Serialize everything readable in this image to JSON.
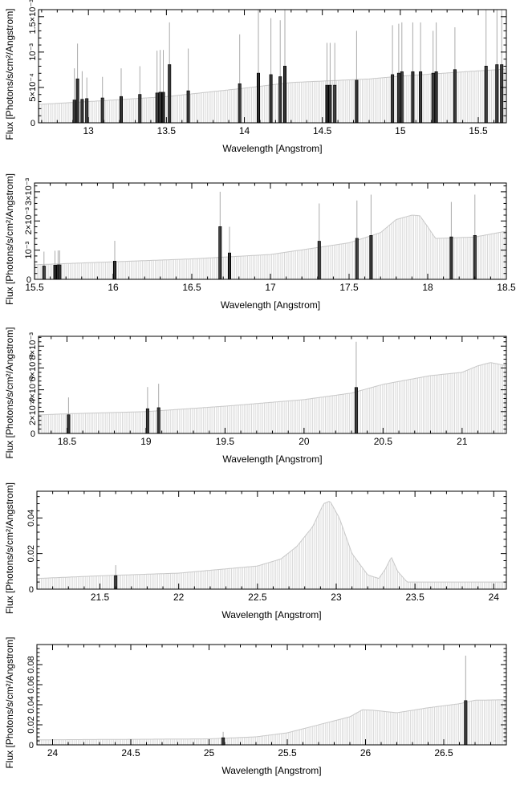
{
  "chart_data": [
    {
      "type": "bar",
      "xlabel": "Wavelength [Angstrom]",
      "ylabel": "Flux [Photons/s/cm²/Angstrom]",
      "xlim": [
        12.68,
        15.68
      ],
      "ylim": [
        0,
        0.0016
      ],
      "xticks": [
        13,
        13.5,
        14,
        14.5,
        15,
        15.5
      ],
      "xtick_labels": [
        "13",
        "13.5",
        "14",
        "14.5",
        "15",
        "15.5"
      ],
      "yticks": [
        0.0005,
        0.001,
        0.0015
      ],
      "ytick_labels": [
        "5×10⁻⁴",
        "10⁻³",
        "1.5×10⁻³"
      ],
      "continuum": [
        [
          12.68,
          0.00026
        ],
        [
          13.0,
          0.0003
        ],
        [
          13.5,
          0.00037
        ],
        [
          14.0,
          0.00049
        ],
        [
          14.3,
          0.00057
        ],
        [
          14.6,
          0.0006
        ],
        [
          14.8,
          0.00062
        ],
        [
          15.0,
          0.00066
        ],
        [
          15.4,
          0.00072
        ],
        [
          15.68,
          0.00076
        ]
      ],
      "lines": [
        {
          "x": 12.91,
          "y": 0.00032,
          "err": 0.00045
        },
        {
          "x": 12.93,
          "y": 0.00062,
          "err": 0.0005
        },
        {
          "x": 12.96,
          "y": 0.00033,
          "err": 0.0004
        },
        {
          "x": 12.99,
          "y": 0.00034,
          "err": 0.0003
        },
        {
          "x": 13.09,
          "y": 0.00035,
          "err": 0.0003
        },
        {
          "x": 13.21,
          "y": 0.00037,
          "err": 0.0004
        },
        {
          "x": 13.33,
          "y": 0.0004,
          "err": 0.0004
        },
        {
          "x": 13.44,
          "y": 0.00042,
          "err": 0.0006
        },
        {
          "x": 13.46,
          "y": 0.00043,
          "err": 0.0006
        },
        {
          "x": 13.48,
          "y": 0.00043,
          "err": 0.0006
        },
        {
          "x": 13.52,
          "y": 0.00082,
          "err": 0.0006
        },
        {
          "x": 13.64,
          "y": 0.00045,
          "err": 0.0006
        },
        {
          "x": 13.97,
          "y": 0.00055,
          "err": 0.0007
        },
        {
          "x": 14.09,
          "y": 0.0007,
          "err": 0.0009
        },
        {
          "x": 14.17,
          "y": 0.00068,
          "err": 0.0008
        },
        {
          "x": 14.23,
          "y": 0.00065,
          "err": 0.0008
        },
        {
          "x": 14.26,
          "y": 0.0008,
          "err": 0.0015
        },
        {
          "x": 14.53,
          "y": 0.00053,
          "err": 0.0006
        },
        {
          "x": 14.55,
          "y": 0.00053,
          "err": 0.0006
        },
        {
          "x": 14.58,
          "y": 0.00053,
          "err": 0.0006
        },
        {
          "x": 14.72,
          "y": 0.0006,
          "err": 0.0007
        },
        {
          "x": 14.95,
          "y": 0.00068,
          "err": 0.0007
        },
        {
          "x": 14.99,
          "y": 0.0007,
          "err": 0.0007
        },
        {
          "x": 15.01,
          "y": 0.00072,
          "err": 0.0007
        },
        {
          "x": 15.08,
          "y": 0.00072,
          "err": 0.0007
        },
        {
          "x": 15.13,
          "y": 0.00072,
          "err": 0.0007
        },
        {
          "x": 15.21,
          "y": 0.0007,
          "err": 0.0006
        },
        {
          "x": 15.23,
          "y": 0.00072,
          "err": 0.0007
        },
        {
          "x": 15.35,
          "y": 0.00075,
          "err": 0.0006
        },
        {
          "x": 15.55,
          "y": 0.0008,
          "err": 0.0008
        },
        {
          "x": 15.62,
          "y": 0.00082,
          "err": 0.0009
        },
        {
          "x": 15.65,
          "y": 0.00082,
          "err": 0.0009
        }
      ]
    },
    {
      "type": "bar",
      "xlabel": "Wavelength [Angstrom]",
      "ylabel": "Flux [Photons/s/cm²/Angstrom]",
      "xlim": [
        15.5,
        18.5
      ],
      "ylim": [
        0,
        0.0033
      ],
      "xticks": [
        15.5,
        16,
        16.5,
        17,
        17.5,
        18,
        18.5
      ],
      "xtick_labels": [
        "15.5",
        "16",
        "16.5",
        "17",
        "17.5",
        "18",
        "18.5"
      ],
      "yticks": [
        0.001,
        0.002,
        0.003
      ],
      "ytick_labels": [
        "10⁻³",
        "2×10⁻³",
        "3×10⁻³"
      ],
      "continuum": [
        [
          15.5,
          0.0005
        ],
        [
          16.0,
          0.0006
        ],
        [
          16.5,
          0.0007
        ],
        [
          17.0,
          0.00085
        ],
        [
          17.5,
          0.00125
        ],
        [
          17.7,
          0.0016
        ],
        [
          17.8,
          0.00205
        ],
        [
          17.9,
          0.0022
        ],
        [
          17.95,
          0.00218
        ],
        [
          18.0,
          0.0018
        ],
        [
          18.05,
          0.0014
        ],
        [
          18.3,
          0.00145
        ],
        [
          18.5,
          0.00165
        ]
      ],
      "lines": [
        {
          "x": 15.56,
          "y": 0.00045,
          "err": 0.0005
        },
        {
          "x": 15.63,
          "y": 0.00048,
          "err": 0.0005
        },
        {
          "x": 15.65,
          "y": 0.00049,
          "err": 0.0005
        },
        {
          "x": 15.66,
          "y": 0.00049,
          "err": 0.0005
        },
        {
          "x": 16.01,
          "y": 0.00062,
          "err": 0.0007
        },
        {
          "x": 16.68,
          "y": 0.0018,
          "err": 0.0012
        },
        {
          "x": 16.74,
          "y": 0.0009,
          "err": 0.0009
        },
        {
          "x": 17.31,
          "y": 0.0013,
          "err": 0.0013
        },
        {
          "x": 17.55,
          "y": 0.0014,
          "err": 0.0013
        },
        {
          "x": 17.64,
          "y": 0.0015,
          "err": 0.0014
        },
        {
          "x": 18.15,
          "y": 0.00145,
          "err": 0.0012
        },
        {
          "x": 18.3,
          "y": 0.0015,
          "err": 0.0014
        }
      ]
    },
    {
      "type": "bar",
      "xlabel": "Wavelength [Angstrom]",
      "ylabel": "Flux [Photons/s/cm²/Angstrom]",
      "xlim": [
        18.32,
        21.28
      ],
      "ylim": [
        0,
        0.0089
      ],
      "xticks": [
        18.5,
        19,
        19.5,
        20,
        20.5,
        21
      ],
      "xtick_labels": [
        "18.5",
        "19",
        "19.5",
        "20",
        "20.5",
        "21"
      ],
      "yticks": [
        0.002,
        0.004,
        0.006,
        0.008
      ],
      "ytick_labels": [
        "2×10⁻³",
        "4×10⁻³",
        "6×10⁻³",
        "8×10⁻³"
      ],
      "continuum": [
        [
          18.32,
          0.0017
        ],
        [
          18.5,
          0.0018
        ],
        [
          19.0,
          0.002
        ],
        [
          19.5,
          0.0025
        ],
        [
          20.0,
          0.0031
        ],
        [
          20.3,
          0.0037
        ],
        [
          20.5,
          0.0045
        ],
        [
          20.8,
          0.0053
        ],
        [
          21.0,
          0.0056
        ],
        [
          21.1,
          0.0062
        ],
        [
          21.18,
          0.0065
        ],
        [
          21.28,
          0.0062
        ]
      ],
      "lines": [
        {
          "x": 18.51,
          "y": 0.0017,
          "err": 0.0016
        },
        {
          "x": 19.01,
          "y": 0.00225,
          "err": 0.002
        },
        {
          "x": 19.08,
          "y": 0.00235,
          "err": 0.0022
        },
        {
          "x": 20.33,
          "y": 0.0042,
          "err": 0.0042
        }
      ]
    },
    {
      "type": "bar",
      "xlabel": "Wavelength [Angstrom]",
      "ylabel": "Flux [Photons/s/cm²/Angstrom]",
      "xlim": [
        21.1,
        24.08
      ],
      "ylim": [
        0,
        0.055
      ],
      "xticks": [
        21.5,
        22,
        22.5,
        23,
        23.5,
        24
      ],
      "xtick_labels": [
        "21.5",
        "22",
        "22.5",
        "23",
        "23.5",
        "24"
      ],
      "yticks": [
        0.02,
        0.04
      ],
      "ytick_labels": [
        "0.02",
        "0.04"
      ],
      "continuum": [
        [
          21.1,
          0.006
        ],
        [
          21.5,
          0.0075
        ],
        [
          22.0,
          0.009
        ],
        [
          22.5,
          0.013
        ],
        [
          22.65,
          0.017
        ],
        [
          22.75,
          0.024
        ],
        [
          22.85,
          0.035
        ],
        [
          22.92,
          0.048
        ],
        [
          22.96,
          0.0495
        ],
        [
          23.02,
          0.04
        ],
        [
          23.1,
          0.02
        ],
        [
          23.2,
          0.008
        ],
        [
          23.27,
          0.006
        ],
        [
          23.31,
          0.011
        ],
        [
          23.35,
          0.018
        ],
        [
          23.39,
          0.01
        ],
        [
          23.45,
          0.004
        ],
        [
          24.08,
          0.004
        ]
      ],
      "lines": [
        {
          "x": 21.6,
          "y": 0.0075,
          "err": 0.006
        }
      ]
    },
    {
      "type": "bar",
      "xlabel": "Wavelength [Angstrom]",
      "ylabel": "Flux [Photons/s/cm²/Angstrom]",
      "xlim": [
        23.9,
        26.9
      ],
      "ylim": [
        0,
        0.1
      ],
      "xticks": [
        24,
        24.5,
        25,
        25.5,
        26,
        26.5
      ],
      "xtick_labels": [
        "24",
        "24.5",
        "25",
        "25.5",
        "26",
        "26.5"
      ],
      "yticks": [
        0.02,
        0.04,
        0.06,
        0.08
      ],
      "ytick_labels": [
        "0.02",
        "0.04",
        "0.06",
        "0.08"
      ],
      "continuum": [
        [
          23.9,
          0.005
        ],
        [
          24.5,
          0.0055
        ],
        [
          25.0,
          0.006
        ],
        [
          25.3,
          0.008
        ],
        [
          25.5,
          0.012
        ],
        [
          25.7,
          0.02
        ],
        [
          25.9,
          0.028
        ],
        [
          25.98,
          0.035
        ],
        [
          26.05,
          0.0345
        ],
        [
          26.2,
          0.032
        ],
        [
          26.4,
          0.037
        ],
        [
          26.6,
          0.041
        ],
        [
          26.7,
          0.0445
        ],
        [
          26.9,
          0.045
        ]
      ],
      "lines": [
        {
          "x": 25.09,
          "y": 0.007,
          "err": 0.006
        },
        {
          "x": 26.64,
          "y": 0.044,
          "err": 0.045
        }
      ]
    }
  ]
}
